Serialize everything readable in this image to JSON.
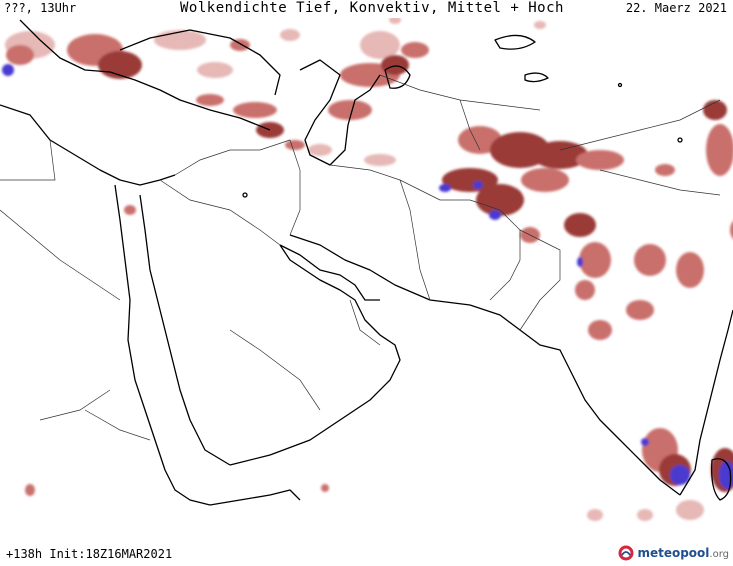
{
  "header": {
    "left": "???, 13Uhr",
    "center": "Wolkendichte  Tief, Konvektiv, Mittel + Hoch",
    "right": "22. Maerz 2021"
  },
  "footer": {
    "run_info": "+138h Init:18Z16MAR2021"
  },
  "logo": {
    "name": "meteopool",
    "tld": ".org",
    "icon": "meteopool-logo-icon"
  },
  "colors": {
    "cloud_light": "#e6b8b6",
    "cloud_medium": "#c9706c",
    "cloud_dense": "#9a3a37",
    "cloud_convective": "#4a3bd0",
    "coastline": "#000000",
    "border": "#333333"
  }
}
